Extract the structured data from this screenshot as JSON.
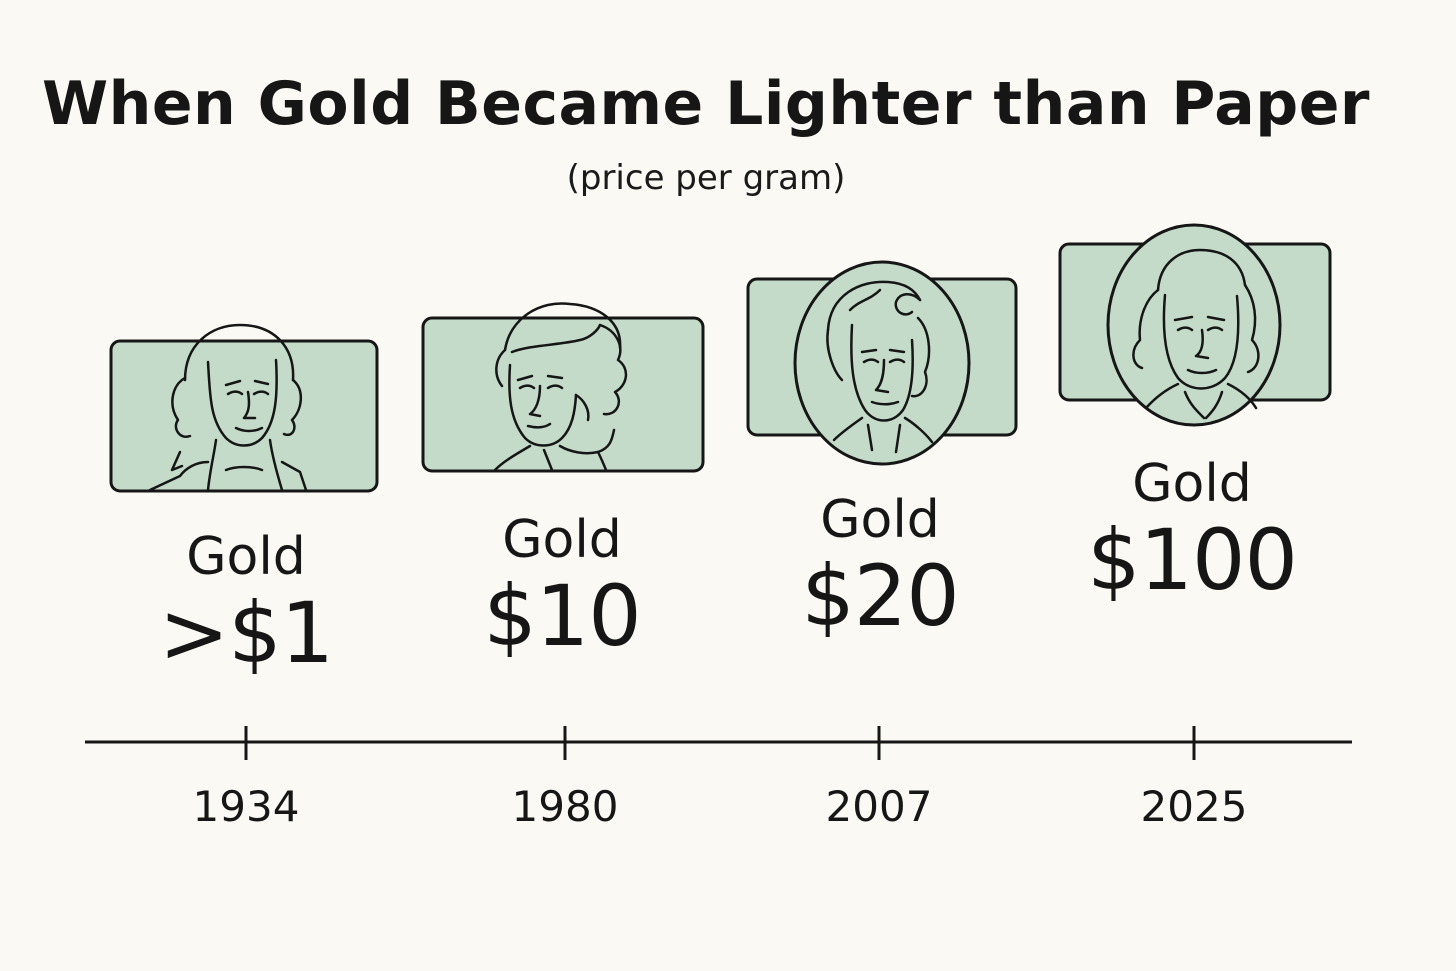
{
  "title": "When Gold Became Lighter than Paper",
  "subtitle": "(price per gram)",
  "colors": {
    "background": "#faf9f4",
    "note_fill": "#c4dbc9",
    "ink": "#161616"
  },
  "chart_data": {
    "type": "timeline",
    "points": [
      {
        "year": "1934",
        "label": "Gold",
        "price": ">$1",
        "bill_portrait": "washington-portrait-icon"
      },
      {
        "year": "1980",
        "label": "Gold",
        "price": "$10",
        "bill_portrait": "hamilton-portrait-icon"
      },
      {
        "year": "2007",
        "label": "Gold",
        "price": "$20",
        "bill_portrait": "jackson-portrait-icon"
      },
      {
        "year": "2025",
        "label": "Gold",
        "price": "$100",
        "bill_portrait": "franklin-portrait-icon"
      }
    ]
  }
}
